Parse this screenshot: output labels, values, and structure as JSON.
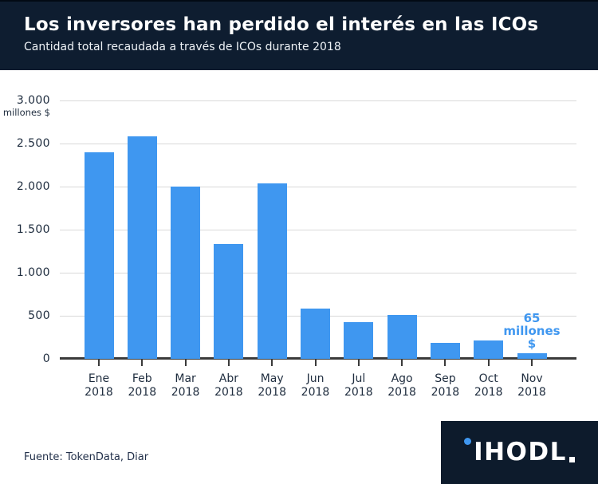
{
  "header": {
    "title": "Los inversores han perdido el interés en las ICOs",
    "subtitle": "Cantidad total recaudada a través de ICOs durante 2018"
  },
  "chart_data": {
    "type": "bar",
    "title": "Los inversores han perdido el interés en las ICOs",
    "subtitle": "Cantidad total recaudada a través de ICOs durante 2018",
    "unit_label": "millones $",
    "categories": [
      "Ene 2018",
      "Feb 2018",
      "Mar 2018",
      "Abr 2018",
      "May 2018",
      "Jun 2018",
      "Jul 2018",
      "Ago 2018",
      "Sep 2018",
      "Oct 2018",
      "Nov 2018"
    ],
    "values": [
      2400,
      2580,
      2000,
      1330,
      2040,
      580,
      420,
      505,
      180,
      210,
      65
    ],
    "ylim": [
      0,
      3000
    ],
    "yticks": [
      0,
      500,
      1000,
      1500,
      2000,
      2500,
      3000
    ],
    "ytick_labels": [
      "0",
      "500",
      "1.000",
      "1.500",
      "2.000",
      "2.500",
      "3.000"
    ],
    "grid": "horizontal",
    "legend": "none",
    "bar_color": "#3f97f0",
    "annotation": {
      "lines": [
        "65",
        "millones",
        "$"
      ],
      "text": "65 millones $",
      "bar_index": 10,
      "color": "#3f97f0"
    }
  },
  "footer": {
    "source": "Fuente: TokenData, Diar"
  },
  "logo": {
    "text": "IHODL"
  },
  "colors": {
    "header_bg": "#0e1d30",
    "logo_bg": "#0d1b2c",
    "bar_blue": "#3f97f0",
    "gridline": "#d9d9d9",
    "axis": "#3a3a3a",
    "text_dark": "#1e2c3e"
  }
}
